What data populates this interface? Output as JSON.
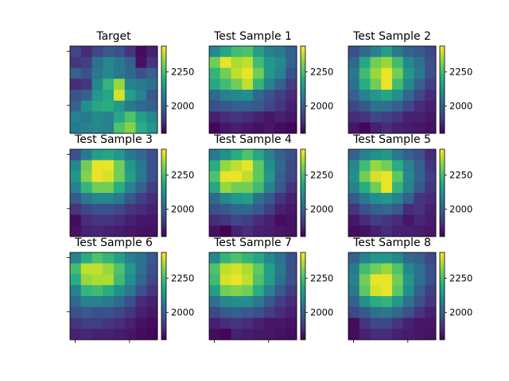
{
  "chart_data": {
    "type": "heatmap",
    "colormap": "viridis",
    "grid": false,
    "colorbar": {
      "min": 1800,
      "max": 2440,
      "ticks": [
        2000,
        2250
      ],
      "tick_labels": [
        "2000",
        "2250"
      ]
    },
    "panels": [
      {
        "title": "Target",
        "values": [
          [
            1940,
            1880,
            1940,
            1980,
            1960,
            1900,
            1820,
            1860
          ],
          [
            1900,
            1920,
            2040,
            2100,
            2060,
            2000,
            1830,
            1900
          ],
          [
            2000,
            1960,
            2060,
            2100,
            2060,
            2020,
            1960,
            2000
          ],
          [
            1880,
            1900,
            2100,
            2220,
            2340,
            2080,
            2060,
            2040
          ],
          [
            1960,
            2000,
            2140,
            2180,
            2400,
            2160,
            2080,
            1980
          ],
          [
            2000,
            2120,
            2180,
            2200,
            2140,
            2060,
            2020,
            2000
          ],
          [
            2080,
            2060,
            2100,
            2080,
            2180,
            2260,
            2160,
            2100
          ],
          [
            2060,
            2080,
            2100,
            2080,
            2260,
            2320,
            2200,
            2140
          ]
        ]
      },
      {
        "title": "Test Sample 1",
        "values": [
          [
            2100,
            2180,
            2240,
            2260,
            2160,
            2080,
            2060,
            2000
          ],
          [
            2300,
            2420,
            2360,
            2380,
            2240,
            2140,
            2100,
            2000
          ],
          [
            2220,
            2300,
            2380,
            2420,
            2300,
            2140,
            2080,
            1960
          ],
          [
            2180,
            2240,
            2300,
            2380,
            2220,
            2080,
            2000,
            1920
          ],
          [
            2020,
            2080,
            2100,
            2120,
            2020,
            1960,
            1920,
            1880
          ],
          [
            1960,
            1980,
            2000,
            2000,
            1980,
            1940,
            1900,
            1860
          ],
          [
            1860,
            1880,
            1900,
            1880,
            1860,
            1840,
            1860,
            1840
          ],
          [
            1810,
            1840,
            1860,
            1840,
            1830,
            1840,
            1820,
            1810
          ]
        ]
      },
      {
        "title": "Test Sample 2",
        "values": [
          [
            1960,
            2020,
            2080,
            2160,
            2060,
            2000,
            1980,
            1940
          ],
          [
            2020,
            2180,
            2300,
            2340,
            2240,
            2100,
            2040,
            1960
          ],
          [
            2060,
            2240,
            2340,
            2420,
            2300,
            2140,
            2060,
            1960
          ],
          [
            2040,
            2200,
            2300,
            2420,
            2240,
            2100,
            2000,
            1920
          ],
          [
            2000,
            2080,
            2140,
            2180,
            2120,
            2020,
            1940,
            1880
          ],
          [
            1940,
            1980,
            2040,
            2040,
            2000,
            1940,
            1880,
            1860
          ],
          [
            1880,
            1900,
            1940,
            1920,
            1900,
            1860,
            1860,
            1840
          ],
          [
            1840,
            1810,
            1860,
            1880,
            1860,
            1850,
            1840,
            1830
          ]
        ]
      },
      {
        "title": "Test Sample 3",
        "values": [
          [
            1960,
            2060,
            2160,
            2180,
            2140,
            2060,
            2020,
            1960
          ],
          [
            2100,
            2300,
            2420,
            2420,
            2300,
            2140,
            2060,
            1960
          ],
          [
            2140,
            2320,
            2420,
            2400,
            2300,
            2160,
            2060,
            1960
          ],
          [
            2080,
            2220,
            2300,
            2300,
            2200,
            2080,
            2000,
            1920
          ],
          [
            1980,
            2060,
            2100,
            2100,
            2060,
            1980,
            1920,
            1880
          ],
          [
            1900,
            1940,
            1960,
            1960,
            1940,
            1900,
            1880,
            1860
          ],
          [
            1820,
            1880,
            1900,
            1900,
            1880,
            1860,
            1840,
            1840
          ],
          [
            1830,
            1860,
            1870,
            1860,
            1850,
            1840,
            1830,
            1830
          ]
        ]
      },
      {
        "title": "Test Sample 4",
        "values": [
          [
            2060,
            2120,
            2200,
            2260,
            2180,
            2080,
            2000,
            1960
          ],
          [
            2200,
            2340,
            2380,
            2420,
            2280,
            2120,
            2020,
            1940
          ],
          [
            2260,
            2420,
            2420,
            2380,
            2280,
            2140,
            2000,
            1940
          ],
          [
            2180,
            2340,
            2300,
            2300,
            2240,
            2080,
            1980,
            1900
          ],
          [
            2020,
            2100,
            2140,
            2160,
            2040,
            1980,
            1900,
            1860
          ],
          [
            1960,
            1980,
            2020,
            2020,
            1980,
            1920,
            1860,
            1840
          ],
          [
            1880,
            1900,
            1940,
            1920,
            1880,
            1860,
            1820,
            1830
          ],
          [
            1830,
            1800,
            1860,
            1880,
            1860,
            1850,
            1840,
            1830
          ]
        ]
      },
      {
        "title": "Test Sample 5",
        "values": [
          [
            2000,
            2080,
            2120,
            2140,
            2060,
            2000,
            1960,
            1880
          ],
          [
            2100,
            2240,
            2340,
            2300,
            2200,
            2080,
            2000,
            1900
          ],
          [
            2120,
            2300,
            2400,
            2420,
            2280,
            2100,
            2000,
            1920
          ],
          [
            2080,
            2200,
            2300,
            2420,
            2220,
            2080,
            1980,
            1900
          ],
          [
            1980,
            2060,
            2120,
            2140,
            2080,
            2000,
            1900,
            1880
          ],
          [
            1900,
            1960,
            2000,
            2020,
            1980,
            1880,
            1900,
            1860
          ],
          [
            1840,
            1880,
            1920,
            1900,
            1880,
            1840,
            1870,
            1850
          ],
          [
            1820,
            1830,
            1860,
            1880,
            1860,
            1860,
            1850,
            1840
          ]
        ]
      },
      {
        "title": "Test Sample 6",
        "values": [
          [
            2080,
            2200,
            2260,
            2220,
            2160,
            2080,
            2040,
            1980
          ],
          [
            2240,
            2380,
            2380,
            2340,
            2260,
            2140,
            2040,
            1960
          ],
          [
            2200,
            2340,
            2360,
            2360,
            2240,
            2120,
            2020,
            1940
          ],
          [
            2080,
            2220,
            2240,
            2200,
            2120,
            2060,
            1960,
            1900
          ],
          [
            2020,
            2080,
            2080,
            2060,
            2020,
            1960,
            1880,
            1860
          ],
          [
            1960,
            1980,
            1960,
            1960,
            1940,
            1900,
            1860,
            1840
          ],
          [
            1900,
            1920,
            1920,
            1900,
            1880,
            1860,
            1830,
            1820
          ],
          [
            1860,
            1870,
            1860,
            1860,
            1850,
            1840,
            1820,
            1810
          ]
        ]
      },
      {
        "title": "Test Sample 7",
        "values": [
          [
            2100,
            2220,
            2260,
            2220,
            2180,
            2100,
            2040,
            1960
          ],
          [
            2260,
            2380,
            2400,
            2360,
            2280,
            2160,
            2060,
            1960
          ],
          [
            2240,
            2400,
            2420,
            2380,
            2260,
            2160,
            2040,
            1960
          ],
          [
            2160,
            2300,
            2320,
            2300,
            2200,
            2080,
            1980,
            1920
          ],
          [
            2040,
            2100,
            2120,
            2120,
            2060,
            1980,
            1920,
            1880
          ],
          [
            1940,
            1980,
            2000,
            1980,
            1960,
            1920,
            1880,
            1860
          ],
          [
            1860,
            1880,
            1900,
            1880,
            1860,
            1840,
            1840,
            1830
          ],
          [
            1820,
            1810,
            1860,
            1850,
            1840,
            1840,
            1830,
            1820
          ]
        ]
      },
      {
        "title": "Test Sample 8",
        "values": [
          [
            2000,
            2080,
            2140,
            2140,
            2100,
            2020,
            2000,
            1940
          ],
          [
            2060,
            2240,
            2300,
            2340,
            2260,
            2100,
            2040,
            1960
          ],
          [
            2080,
            2300,
            2420,
            2420,
            2300,
            2140,
            2040,
            1960
          ],
          [
            2060,
            2280,
            2400,
            2420,
            2280,
            2120,
            2000,
            1920
          ],
          [
            2000,
            2120,
            2200,
            2220,
            2140,
            2040,
            1960,
            1900
          ],
          [
            1940,
            1980,
            2040,
            2060,
            2020,
            1960,
            1900,
            1860
          ],
          [
            1820,
            1900,
            1940,
            1940,
            1900,
            1860,
            1840,
            1840
          ],
          [
            1820,
            1860,
            1880,
            1880,
            1860,
            1850,
            1840,
            1830
          ]
        ]
      }
    ]
  }
}
